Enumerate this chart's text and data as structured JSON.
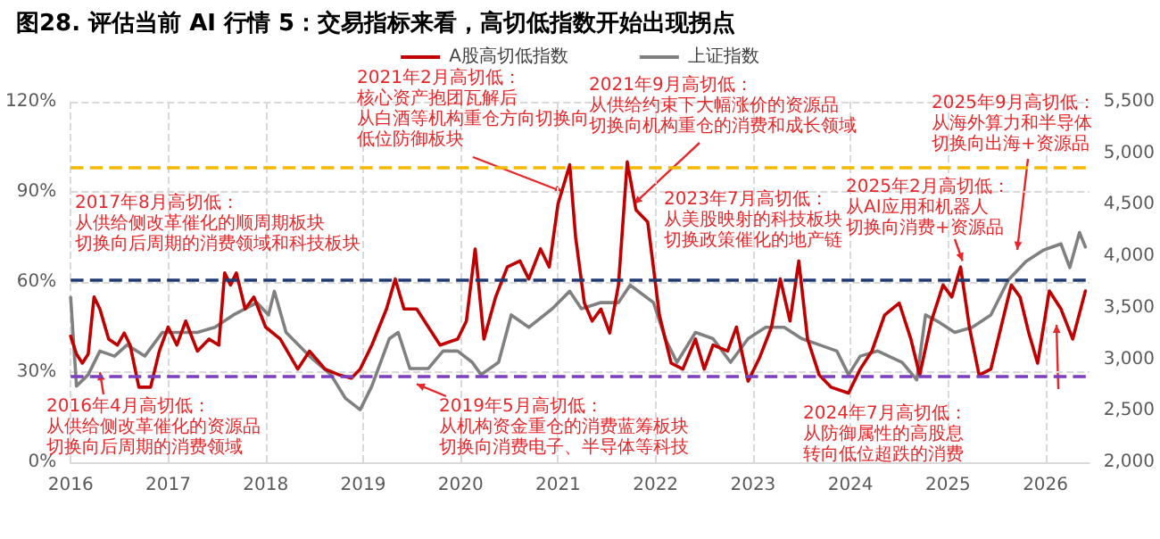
{
  "chart_data": {
    "type": "line",
    "title": "图28. 评估当前 AI 行情 5：交易指标来看，高切低指数开始出现拐点",
    "xlim": [
      2016,
      2026.45
    ],
    "xticks": [
      2016,
      2017,
      2018,
      2019,
      2020,
      2021,
      2022,
      2023,
      2024,
      2025,
      2026
    ],
    "ylim": [
      0,
      120
    ],
    "yticks": [
      {
        "value": 0,
        "label": "0%"
      },
      {
        "value": 30,
        "label": "30%"
      },
      {
        "value": 60,
        "label": "60%"
      },
      {
        "value": 90,
        "label": "90%"
      },
      {
        "value": 120,
        "label": "120%"
      }
    ],
    "y2lim": [
      2000,
      5500
    ],
    "y2ticks": [
      {
        "value": 2000,
        "label": "2,000"
      },
      {
        "value": 2500,
        "label": "2,500"
      },
      {
        "value": 3000,
        "label": "3,000"
      },
      {
        "value": 3500,
        "label": "3,500"
      },
      {
        "value": 4000,
        "label": "4,000"
      },
      {
        "value": 4500,
        "label": "4,500"
      },
      {
        "value": 5000,
        "label": "5,000"
      },
      {
        "value": 5500,
        "label": "5,500"
      }
    ],
    "grid": true,
    "legend": "top",
    "marker": "none",
    "line_style": "solid",
    "series": [
      {
        "name": "A股高切低指数",
        "color": "#c00000",
        "x": [
          2016.0,
          2016.06,
          2016.12,
          2016.18,
          2016.24,
          2016.3,
          2016.39,
          2016.48,
          2016.55,
          2016.61,
          2016.7,
          2016.82,
          2016.91,
          2017.0,
          2017.09,
          2017.18,
          2017.3,
          2017.42,
          2017.52,
          2017.58,
          2017.64,
          2017.7,
          2017.79,
          2017.88,
          2018.0,
          2018.15,
          2018.33,
          2018.45,
          2018.61,
          2018.76,
          2018.88,
          2018.97,
          2019.09,
          2019.24,
          2019.33,
          2019.42,
          2019.55,
          2019.67,
          2019.79,
          2019.97,
          2020.06,
          2020.15,
          2020.24,
          2020.36,
          2020.48,
          2020.61,
          2020.7,
          2020.82,
          2020.91,
          2021.0,
          2021.12,
          2021.18,
          2021.27,
          2021.35,
          2021.44,
          2021.53,
          2021.62,
          2021.71,
          2021.8,
          2021.92,
          2022.04,
          2022.16,
          2022.28,
          2022.41,
          2022.5,
          2022.59,
          2022.74,
          2022.83,
          2022.95,
          2023.07,
          2023.19,
          2023.28,
          2023.38,
          2023.47,
          2023.56,
          2023.68,
          2023.8,
          2023.98,
          2024.1,
          2024.22,
          2024.35,
          2024.5,
          2024.62,
          2024.71,
          2024.83,
          2024.95,
          2025.04,
          2025.13,
          2025.22,
          2025.32,
          2025.44,
          2025.56,
          2025.65,
          2025.74,
          2025.83,
          2025.92,
          2026.04,
          2026.16,
          2026.28,
          2026.41
        ],
        "values": [
          42,
          36,
          33,
          36,
          55,
          51,
          41,
          39,
          43,
          39,
          25,
          25,
          37,
          45,
          39,
          47,
          37,
          41,
          39,
          63,
          59,
          63,
          51,
          55,
          45,
          41,
          31,
          37,
          31,
          29,
          28,
          31,
          39,
          51,
          61,
          51,
          51,
          45,
          39,
          41,
          47,
          71,
          41,
          55,
          65,
          67,
          61,
          71,
          65,
          86,
          99,
          75,
          53,
          47,
          51,
          43,
          59,
          100,
          84,
          80,
          49,
          33,
          31,
          41,
          31,
          39,
          37,
          45,
          27,
          35,
          45,
          61,
          47,
          67,
          41,
          29,
          25,
          23,
          31,
          37,
          49,
          53,
          41,
          29,
          47,
          59,
          55,
          65,
          45,
          29,
          31,
          47,
          59,
          55,
          43,
          33,
          57,
          51,
          41,
          57
        ]
      },
      {
        "name": "上证指数",
        "color": "#808080",
        "axis": "y2",
        "x": [
          2016.0,
          2016.06,
          2016.18,
          2016.3,
          2016.45,
          2016.58,
          2016.76,
          2016.94,
          2017.12,
          2017.3,
          2017.48,
          2017.67,
          2017.91,
          2018.03,
          2018.09,
          2018.21,
          2018.45,
          2018.67,
          2018.82,
          2018.97,
          2019.09,
          2019.27,
          2019.36,
          2019.48,
          2019.67,
          2019.82,
          2019.97,
          2020.12,
          2020.21,
          2020.39,
          2020.52,
          2020.7,
          2020.94,
          2021.12,
          2021.24,
          2021.44,
          2021.62,
          2021.74,
          2021.98,
          2022.1,
          2022.22,
          2022.41,
          2022.59,
          2022.77,
          2022.95,
          2023.13,
          2023.32,
          2023.5,
          2023.68,
          2023.86,
          2023.98,
          2024.1,
          2024.28,
          2024.53,
          2024.68,
          2024.77,
          2024.89,
          2025.07,
          2025.25,
          2025.44,
          2025.62,
          2025.8,
          2025.98,
          2026.16,
          2026.25,
          2026.35,
          2026.41
        ],
        "values": [
          3600,
          2740,
          2850,
          3080,
          3030,
          3140,
          3030,
          3260,
          3260,
          3260,
          3310,
          3430,
          3550,
          3430,
          3660,
          3260,
          3030,
          2850,
          2620,
          2510,
          2740,
          3200,
          3260,
          2910,
          2910,
          3080,
          3080,
          2970,
          2850,
          2970,
          3430,
          3310,
          3490,
          3660,
          3490,
          3550,
          3550,
          3720,
          3550,
          3200,
          2970,
          3260,
          3200,
          2970,
          3200,
          3310,
          3310,
          3200,
          3140,
          3080,
          2850,
          3030,
          3080,
          2970,
          2800,
          3430,
          3370,
          3260,
          3310,
          3430,
          3770,
          3950,
          4060,
          4120,
          3890,
          4230,
          4090
        ]
      }
    ],
    "ref_lines": [
      {
        "axis": "y",
        "value": 98,
        "color": "#f5b800",
        "line_style": "dashed"
      },
      {
        "axis": "y",
        "value": 61,
        "color": "#1f3a70",
        "line_style": "dashed"
      },
      {
        "axis": "y",
        "value": 28.5,
        "color": "#7b3fbf",
        "line_style": "dashed"
      }
    ],
    "annotations": [
      {
        "text": "2021年2月高切低：核心资产抱团瓦解后从白酒等机构重仓方向切换向低位防御板块",
        "x": 2021.05,
        "y": 90
      },
      {
        "text": "2021年9月高切低：从供给约束下大幅涨价的资源品切换向机构重仓的消费和成长领域",
        "x": 2021.78,
        "y": 86
      },
      "2017年8月高切低：从供给侧改革催化的顺周期板块切换向后周期的消费领域和科技板块",
      {
        "text": "2016年4月高切低：从供给侧改革催化的资源品切换向后周期的消费领域",
        "x": 2016.3,
        "y": 30
      },
      {
        "text": "2019年5月高切低：从机构资金重仓的消费蓝筹板块切换向消费电子、半导体等科技",
        "x": 2019.55,
        "y": 26
      },
      "2023年7月高切低：从美股映射的科技板块切换政策催化的地产链",
      {
        "text": "2025年2月高切低：从AI应用和机器人切换向消费+资源品",
        "x": 2025.15,
        "y": 67
      },
      "2025年9月高切低：从海外算力和半导体切换向出海+资源品",
      "2024年7月高切低：从防御属性的高股息转向低位超跌的消费"
    ]
  }
}
